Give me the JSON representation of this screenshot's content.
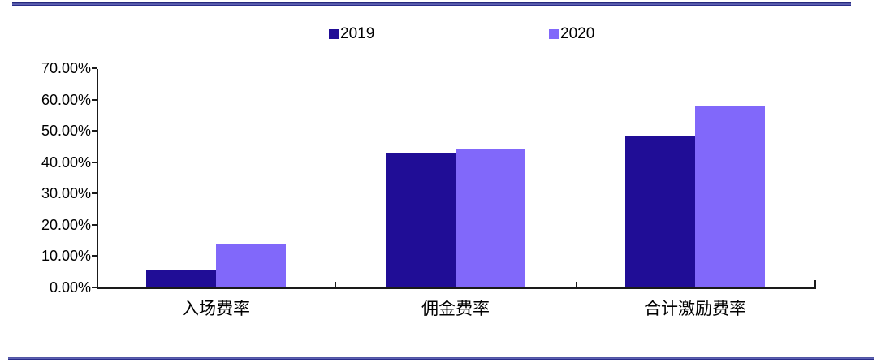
{
  "page": {
    "top_border_color": "#2a2d8a",
    "bottom_border_color": "#2a2d8a",
    "axis_color": "#1a1a1a",
    "text_color": "#000000"
  },
  "chart_data": {
    "type": "bar",
    "title": "",
    "xlabel": "",
    "ylabel": "",
    "categories": [
      "入场费率",
      "佣金费率",
      "合计激励费率"
    ],
    "series": [
      {
        "name": "2019",
        "color": "#200d96",
        "values": [
          5.5,
          43.0,
          48.5
        ]
      },
      {
        "name": "2020",
        "color": "#8168fa",
        "values": [
          14.0,
          44.0,
          58.0
        ]
      }
    ],
    "ylim": [
      0,
      70
    ],
    "ytick_step": 10,
    "ytick_values": [
      70,
      60,
      50,
      40,
      30,
      20,
      10,
      0
    ],
    "ytick_labels": [
      "70.00%",
      "60.00%",
      "50.00%",
      "40.00%",
      "30.00%",
      "20.00%",
      "10.00%",
      "0.00%"
    ],
    "value_unit": "percent",
    "legend_position": "top-center",
    "grid": false
  }
}
